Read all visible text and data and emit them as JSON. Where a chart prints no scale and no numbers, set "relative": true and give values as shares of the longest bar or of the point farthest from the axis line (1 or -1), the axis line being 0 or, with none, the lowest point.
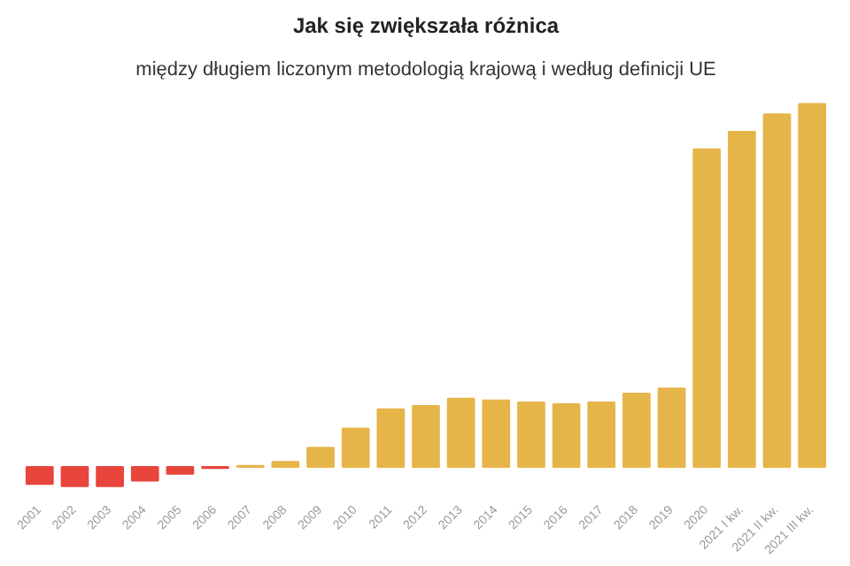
{
  "chart_data": {
    "type": "bar",
    "title": "Jak się zwiększała różnica",
    "subtitle": "między długiem liczonym metodologią krajową i według definicji UE",
    "relative": true,
    "categories": [
      "2001",
      "2002",
      "2003",
      "2004",
      "2005",
      "2006",
      "2007",
      "2008",
      "2009",
      "2010",
      "2011",
      "2012",
      "2013",
      "2014",
      "2015",
      "2016",
      "2017",
      "2018",
      "2019",
      "2020",
      "2021 I kw.",
      "2021 II kw.",
      "2021 III kw."
    ],
    "values": [
      -0.047,
      -0.053,
      -0.053,
      -0.038,
      -0.019,
      -0.003,
      0.003,
      0.014,
      0.053,
      0.106,
      0.159,
      0.168,
      0.188,
      0.183,
      0.178,
      0.173,
      0.178,
      0.202,
      0.216,
      0.875,
      0.923,
      0.971,
      1
    ],
    "colors": [
      "#e8453c",
      "#e8453c",
      "#e8453c",
      "#e8453c",
      "#e8453c",
      "#e8453c",
      "#e6b54a",
      "#e6b54a",
      "#e6b54a",
      "#e6b54a",
      "#e6b54a",
      "#e6b54a",
      "#e6b54a",
      "#e6b54a",
      "#e6b54a",
      "#e6b54a",
      "#e6b54a",
      "#e6b54a",
      "#e6b54a",
      "#e6b54a",
      "#e6b54a",
      "#e6b54a",
      "#e6b54a"
    ]
  }
}
